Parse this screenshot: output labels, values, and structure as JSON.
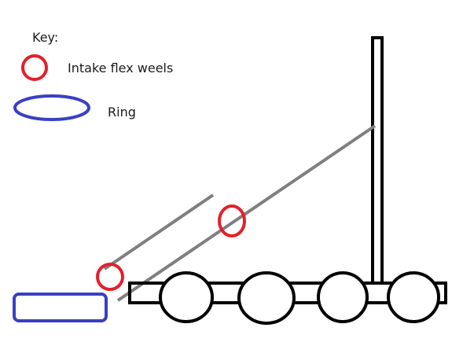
{
  "key": {
    "title": "Key:",
    "items": [
      {
        "label": "Intake flex weels",
        "symbol": "red-circle-icon",
        "color": "#e3202a"
      },
      {
        "label": "Ring",
        "symbol": "blue-ellipse-icon",
        "color": "#3a3fc4"
      }
    ]
  },
  "colors": {
    "intake_wheel": "#e3202a",
    "ring": "#3a3fc4",
    "ramp": "#7f7f7f",
    "chassis": "#000000",
    "background": "#ffffff"
  },
  "diagram": {
    "chassis_wheel_count": 4,
    "intake_wheel_count": 2,
    "ramp_count": 2,
    "ring_count": 1
  }
}
